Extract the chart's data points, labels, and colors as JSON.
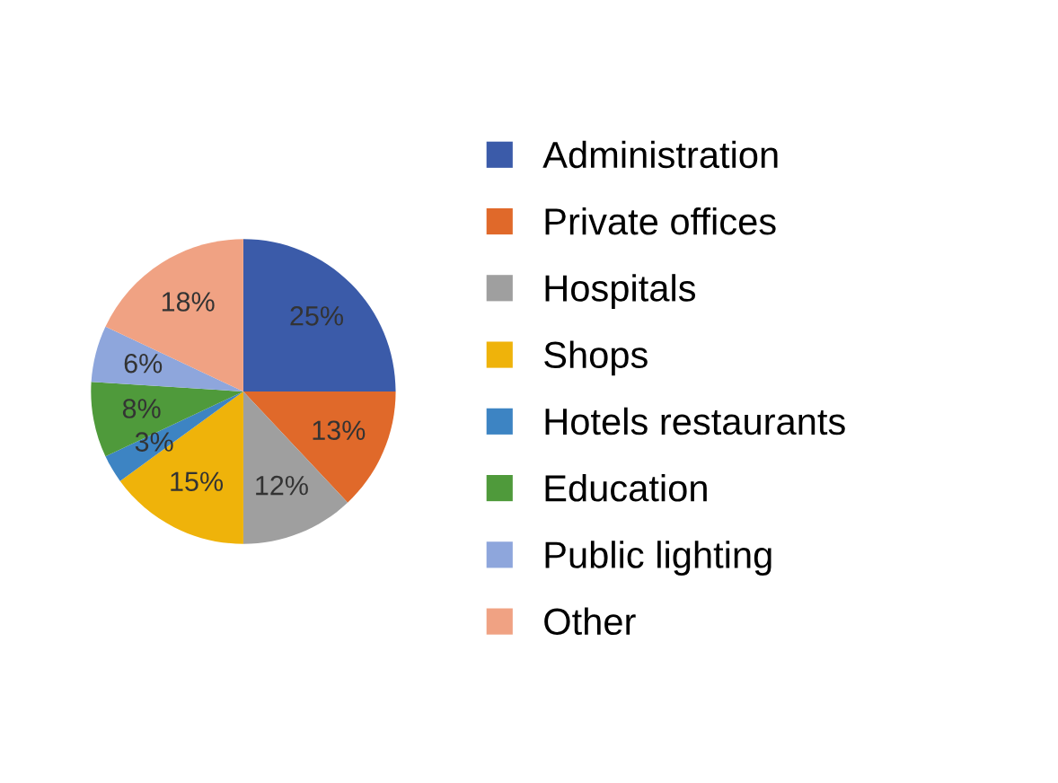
{
  "chart_data": {
    "type": "pie",
    "categories": [
      "Administration",
      "Private offices",
      "Hospitals",
      "Shops",
      "Hotels restaurants",
      "Education",
      "Public lighting",
      "Other"
    ],
    "values": [
      25,
      13,
      12,
      15,
      3,
      8,
      6,
      18
    ],
    "value_labels": [
      "25%",
      "13%",
      "12%",
      "15%",
      "3%",
      "8%",
      "6%",
      "18%"
    ],
    "colors": [
      "#3b5ba9",
      "#e0692a",
      "#9f9f9f",
      "#efb30a",
      "#3d84c3",
      "#4f9a3b",
      "#8ea6dc",
      "#f0a283"
    ],
    "legend": "right"
  }
}
